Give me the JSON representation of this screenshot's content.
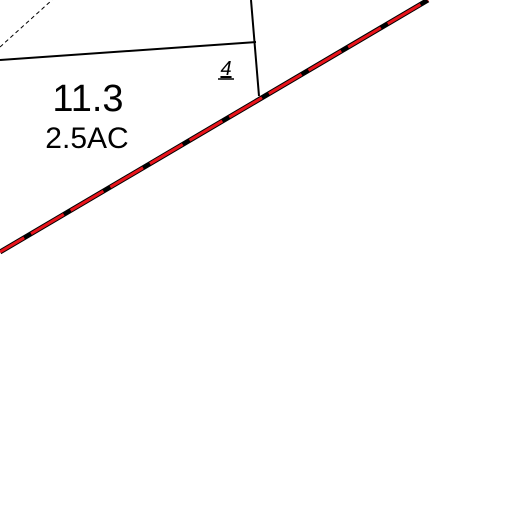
{
  "parcel": {
    "number": "11.3",
    "area": "2.5AC"
  },
  "lot_number": "4"
}
